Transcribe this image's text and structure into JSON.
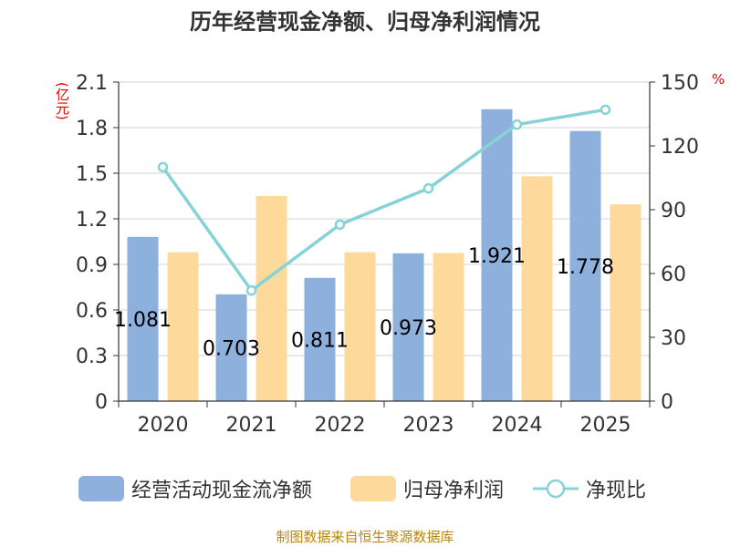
{
  "chart_data": {
    "type": "bar",
    "title": "历年经营现金净额、归母净利润情况",
    "categories": [
      "2020",
      "2021",
      "2022",
      "2023",
      "2024",
      "2025"
    ],
    "series": [
      {
        "name": "经营活动现金流净额",
        "axis": "left",
        "kind": "bar",
        "color": "#8eb0dd",
        "values": [
          1.081,
          0.703,
          0.811,
          0.973,
          1.921,
          1.778
        ]
      },
      {
        "name": "归母净利润",
        "axis": "left",
        "kind": "bar",
        "color": "#fdd99b",
        "values": [
          0.98,
          1.35,
          0.98,
          0.975,
          1.48,
          1.295
        ]
      },
      {
        "name": "净现比",
        "axis": "right",
        "kind": "line",
        "color": "#87d2d7",
        "values": [
          110,
          52,
          83,
          100,
          130,
          137
        ]
      }
    ],
    "data_labels": [
      "1.081",
      "0.703",
      "0.811",
      "0.973",
      "1.921",
      "1.778"
    ],
    "y_left": {
      "unit": "(亿元)",
      "min": 0,
      "max": 2.1,
      "ticks": [
        "0",
        "0.3",
        "0.6",
        "0.9",
        "1.2",
        "1.5",
        "1.8",
        "2.1"
      ]
    },
    "y_right": {
      "unit": "%",
      "min": 0,
      "max": 150,
      "ticks": [
        "0",
        "30",
        "60",
        "90",
        "120",
        "150"
      ]
    },
    "legend_position": "bottom",
    "grid": true
  },
  "footer": {
    "source": "制图数据来自恒生聚源数据库"
  }
}
